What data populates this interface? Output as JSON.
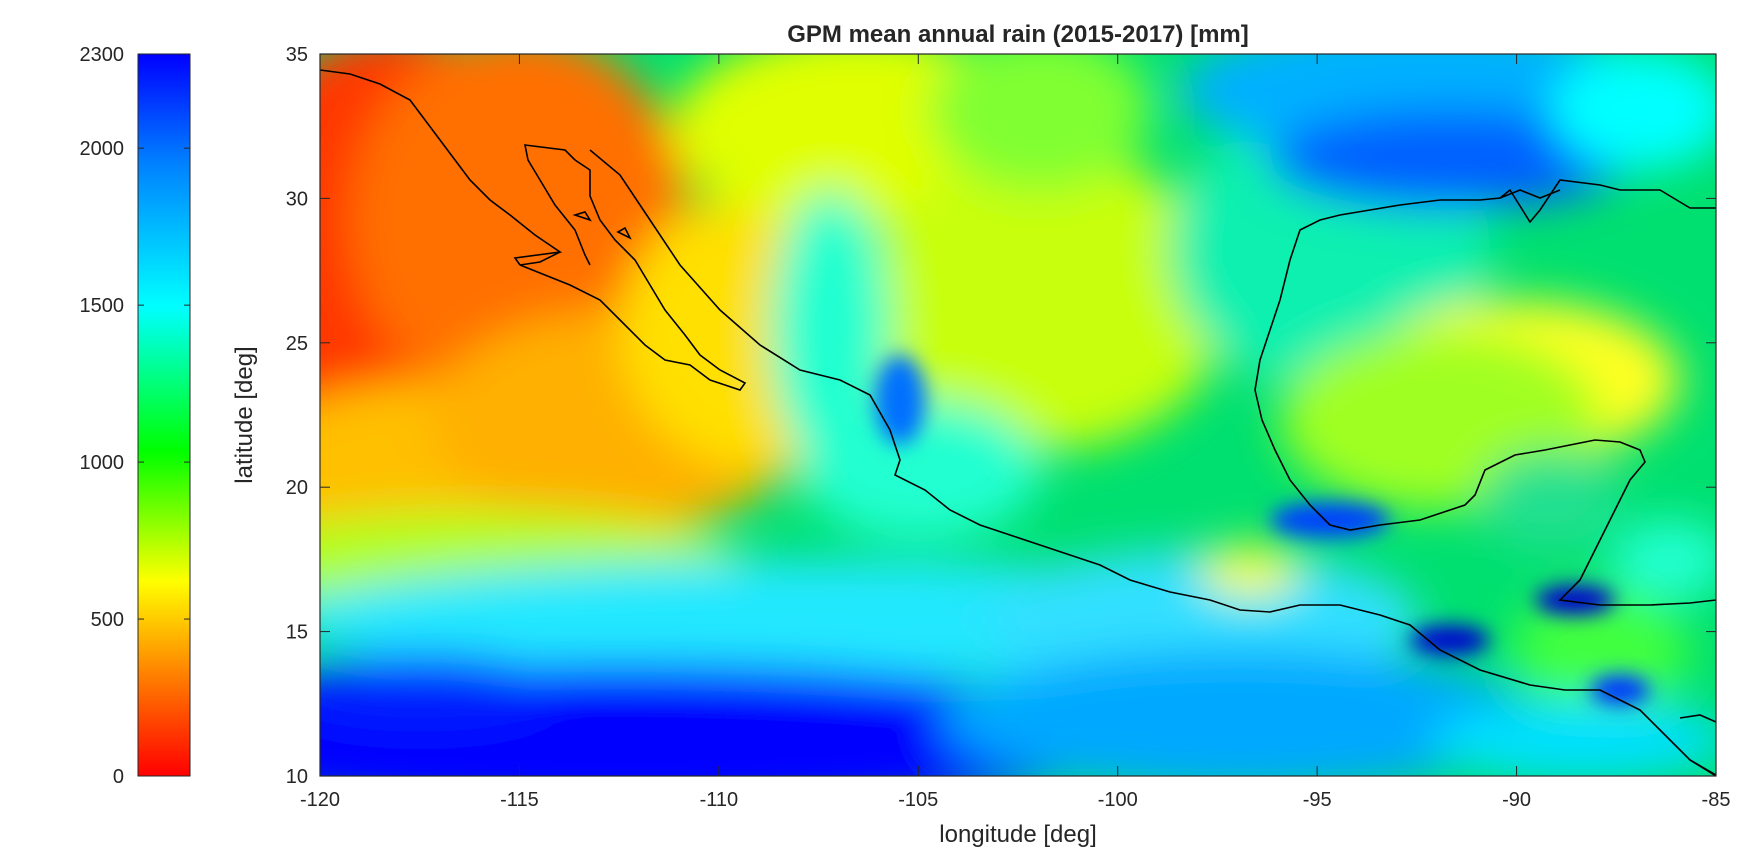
{
  "title": "GPM mean annual rain (2015-2017) [mm]",
  "xlabel": "longitude [deg]",
  "ylabel": "latitude [deg]",
  "x_axis": {
    "range": [
      -120,
      -85
    ],
    "ticks": [
      -120,
      -115,
      -110,
      -105,
      -100,
      -95,
      -90,
      -85
    ],
    "tick_labels": [
      "-120",
      "-115",
      "-110",
      "-105",
      "-100",
      "-95",
      "-90",
      "-85"
    ]
  },
  "y_axis": {
    "range": [
      10,
      35
    ],
    "ticks": [
      10,
      15,
      20,
      25,
      30,
      35
    ],
    "tick_labels": [
      "10",
      "15",
      "20",
      "25",
      "30",
      "35"
    ]
  },
  "colorbar": {
    "colormap": "jet-reversed",
    "range": [
      0,
      2300
    ],
    "ticks": [
      0,
      500,
      1000,
      1500,
      2000,
      2300
    ],
    "tick_labels": [
      "0",
      "500",
      "1000",
      "1500",
      "2000",
      "2300"
    ],
    "low_color": "#ff0000",
    "high_color": "#0000ff"
  },
  "map": {
    "region": "Mexico, Baja California, Gulf of Mexico, Central America",
    "coastline_color": "#000000",
    "note": "gridded precipitation field; dry (red/orange, ~100-400 mm) over NE Pacific west of Baja, wet (blue, >2000 mm) over tropical eastern Pacific south of 14N and northern Gulf of Mexico"
  }
}
